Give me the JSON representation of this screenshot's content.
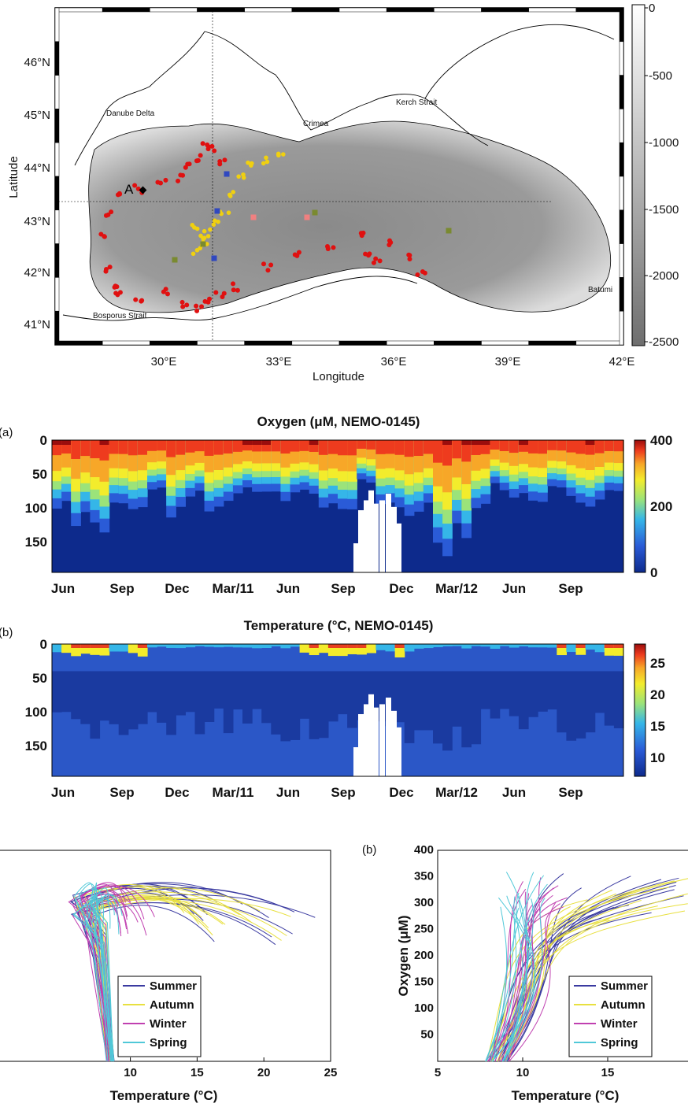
{
  "map": {
    "xlabel": "Longitude",
    "ylabel": "Latitude",
    "lon_ticks": [
      "30°E",
      "33°E",
      "36°E",
      "39°E",
      "42°E"
    ],
    "lat_ticks": [
      "46°N",
      "45°N",
      "44°N",
      "43°N",
      "42°N",
      "41°N"
    ],
    "colorbar_ticks": [
      "0",
      "-500",
      "-1000",
      "-1500",
      "-2000",
      "-2500"
    ],
    "places": {
      "danube": "Danube Delta",
      "kerch": "Kerch Strait",
      "crimea": "Crimea",
      "batumi": "Batumi",
      "bosporus": "Bosporus Strait",
      "point_a": "A"
    }
  },
  "chart_data": [
    {
      "type": "heatmap",
      "panel": "(a)",
      "title": "Oxygen (μM, NEMO-0145)",
      "x_ticks": [
        "Jun",
        "Sep",
        "Dec",
        "Mar/11",
        "Jun",
        "Sep",
        "Dec",
        "Mar/12",
        "Jun",
        "Sep"
      ],
      "y_ticks": [
        "0",
        "50",
        "100",
        "150"
      ],
      "ylim": [
        195,
        0
      ],
      "colorbar": {
        "min": 0,
        "max": 400,
        "ticks": [
          "400",
          "200",
          "0"
        ]
      },
      "oxic_depth_approx": [
        90,
        115,
        130,
        95,
        90,
        75,
        100,
        80,
        95,
        85,
        70,
        75,
        80,
        80,
        90,
        100,
        60,
        90,
        110,
        100,
        150,
        130,
        90,
        70,
        80,
        85,
        75,
        90,
        95,
        80
      ],
      "colormap": [
        "#0d2a8c",
        "#2a5bd7",
        "#35b6e8",
        "#9be37a",
        "#f3ec2c",
        "#f7a728",
        "#ee3b1e",
        "#9b0d0d"
      ]
    },
    {
      "type": "heatmap",
      "panel": "(b)",
      "title": "Temperature (°C, NEMO-0145)",
      "x_ticks": [
        "Jun",
        "Sep",
        "Dec",
        "Mar/11",
        "Jun",
        "Sep",
        "Dec",
        "Mar/12",
        "Jun",
        "Sep"
      ],
      "y_ticks": [
        "0",
        "50",
        "100",
        "150"
      ],
      "ylim": [
        195,
        0
      ],
      "colorbar": {
        "min": 7,
        "max": 28,
        "ticks": [
          "25",
          "20",
          "15",
          "10"
        ]
      }
    },
    {
      "type": "line",
      "panel": "(a)",
      "xlabel": "Temperature (°C)",
      "xlim": [
        0,
        25
      ],
      "x_ticks": [
        "10",
        "15",
        "20",
        "25"
      ],
      "legend": [
        "Summer",
        "Autumn",
        "Winter",
        "Spring"
      ],
      "legend_colors": [
        "#3a3aa0",
        "#e8e040",
        "#c040b0",
        "#50c8d8"
      ]
    },
    {
      "type": "line",
      "panel": "(b)",
      "xlabel": "Temperature (°C)",
      "ylabel": "Oxygen (μM)",
      "xlim": [
        5,
        20
      ],
      "ylim": [
        0,
        400
      ],
      "x_ticks": [
        "5",
        "10",
        "15"
      ],
      "y_ticks": [
        "400",
        "350",
        "300",
        "250",
        "200",
        "150",
        "100",
        "50"
      ],
      "legend": [
        "Summer",
        "Autumn",
        "Winter",
        "Spring"
      ],
      "legend_colors": [
        "#3a3aa0",
        "#e8e040",
        "#c040b0",
        "#50c8d8"
      ]
    }
  ],
  "labels": {
    "mid_a": "(a)",
    "mid_b": "(b)",
    "bot_b": "(b)"
  }
}
